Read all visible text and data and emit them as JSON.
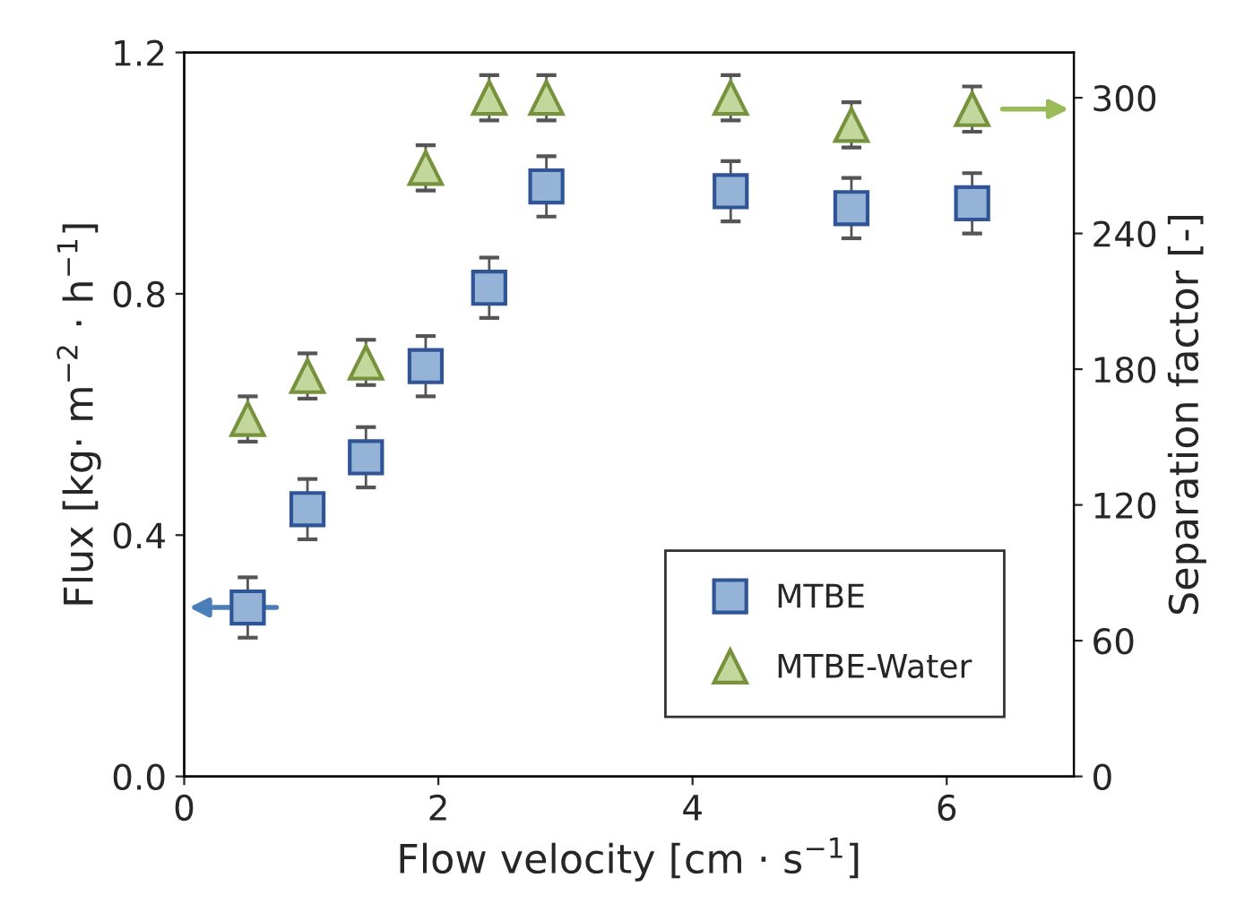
{
  "chart_data": {
    "type": "scatter",
    "xlabel": "Flow velocity [cm · s$^{−1}$]",
    "ylabel": "Flux [kg· m$^{−2}$ · h$^{−1}$]",
    "y2label": "Separation factor [-]",
    "x": [
      0.5,
      0.97,
      1.43,
      1.9,
      2.4,
      2.85,
      4.3,
      5.25,
      6.2
    ],
    "series": [
      {
        "name": "MTBE",
        "color": "#95b3d7",
        "marker": "square",
        "values": [
          0.28,
          0.443,
          0.529,
          0.68,
          0.81,
          0.978,
          0.97,
          0.942,
          0.95
        ],
        "errors": [
          0.05,
          0.05,
          0.05,
          0.05,
          0.05,
          0.05,
          0.05,
          0.05,
          0.05
        ]
      },
      {
        "name": "MTBE-Water",
        "color": "#c3d69b",
        "marker": "triangle",
        "axis": "y2",
        "values": [
          158,
          177,
          183,
          269,
          300,
          300,
          300,
          288,
          295
        ],
        "errors": [
          10,
          10,
          10,
          10,
          10,
          10,
          10,
          10,
          10
        ]
      }
    ],
    "xlim": [
      0,
      7
    ],
    "xticks": [
      0,
      2,
      4,
      6
    ],
    "ylim": [
      0,
      1.2
    ],
    "yticks": [
      {
        "value": 0,
        "label": "0.0"
      },
      {
        "value": 0.4,
        "label": "0.4"
      },
      {
        "value": 0.8,
        "label": "0.8"
      },
      {
        "value": 1.2,
        "label": "1.2"
      }
    ],
    "y2lim": [
      0,
      320
    ],
    "y2ticks": [
      0,
      60,
      120,
      180,
      240,
      300
    ],
    "legend": "bottom right",
    "grid": false
  }
}
